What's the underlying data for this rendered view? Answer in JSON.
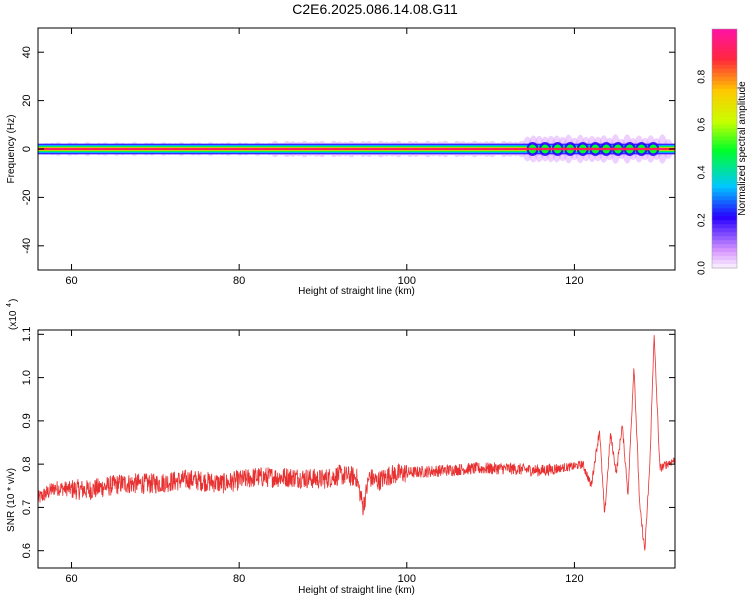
{
  "title": "C2E6.2025.086.14.08.G11",
  "chart_data": [
    {
      "type": "heatmap",
      "xlabel": "Height of straight line (km)",
      "ylabel": "Frequency (Hz)",
      "xlim": [
        56,
        132
      ],
      "ylim": [
        -50,
        50
      ],
      "xticks": [
        60,
        80,
        100,
        120
      ],
      "yticks": [
        40,
        20,
        0,
        -20,
        -40
      ],
      "ridge_frequency_hz": 0,
      "colorbar": {
        "label": "Normalized spectral amplitude",
        "range": [
          0.0,
          1.0
        ],
        "ticks": [
          "0.0",
          "0.2",
          "0.4",
          "0.6",
          "0.8"
        ]
      }
    },
    {
      "type": "line",
      "xlabel": "Height of straight line (km)",
      "ylabel": "SNR (10 * v/v)",
      "yscale_note": "(x10",
      "yscale_exp": "4",
      "ylabel_group": "(x10^4)",
      "xlim": [
        56,
        132
      ],
      "ylim": [
        0.56,
        1.11
      ],
      "xticks": [
        60,
        80,
        100,
        120
      ],
      "yticks": [
        0.6,
        0.7,
        0.8,
        0.9,
        1.0,
        1.1
      ],
      "line_color": "#e83030",
      "anchors_x": [
        56,
        58,
        62,
        66,
        70,
        74,
        78,
        82,
        86,
        90,
        92,
        94,
        94.8,
        95.5,
        96.5,
        98,
        100,
        104,
        108,
        112,
        116,
        118,
        120,
        121,
        122,
        123,
        123.6,
        124.3,
        125,
        125.7,
        126.4,
        127.1,
        127.8,
        128.4,
        129,
        129.5,
        130.2,
        131,
        132
      ],
      "anchors_y": [
        0.72,
        0.745,
        0.74,
        0.755,
        0.755,
        0.765,
        0.755,
        0.77,
        0.77,
        0.765,
        0.775,
        0.77,
        0.7,
        0.77,
        0.76,
        0.775,
        0.78,
        0.785,
        0.79,
        0.79,
        0.785,
        0.79,
        0.795,
        0.8,
        0.75,
        0.88,
        0.68,
        0.87,
        0.78,
        0.89,
        0.73,
        1.03,
        0.7,
        0.6,
        0.8,
        1.1,
        0.79,
        0.8,
        0.81
      ]
    }
  ]
}
